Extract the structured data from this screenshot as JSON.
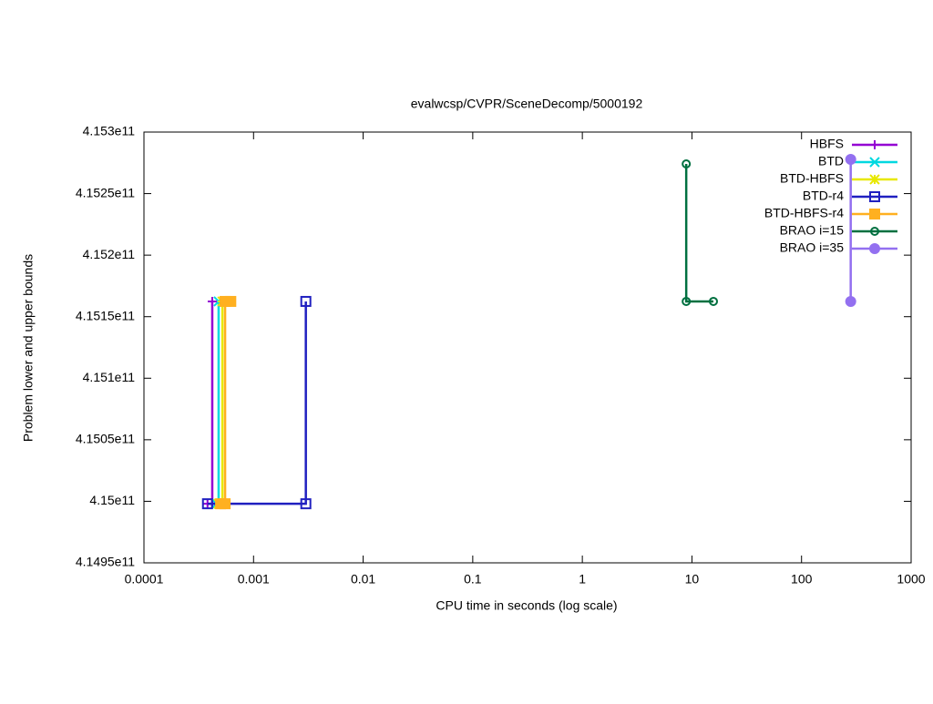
{
  "chart_data": {
    "type": "line",
    "title": "evalwcsp/CVPR/SceneDecomp/5000192",
    "x_label": "CPU time in seconds (log scale)",
    "y_label": "Problem lower and upper bounds",
    "xscale": "log",
    "xlim": [
      0.0001,
      1000
    ],
    "xticks": [
      0.0001,
      0.001,
      0.01,
      0.1,
      1,
      10,
      100,
      1000
    ],
    "ylim": [
      414950000000,
      415300000000
    ],
    "yticks": [
      {
        "value": 414950000000,
        "label": "4.1495e11"
      },
      {
        "value": 415000000000,
        "label": "4.15e11"
      },
      {
        "value": 415050000000,
        "label": "4.1505e11"
      },
      {
        "value": 415100000000,
        "label": "4.151e11"
      },
      {
        "value": 415150000000,
        "label": "4.1515e11"
      },
      {
        "value": 415200000000,
        "label": "4.152e11"
      },
      {
        "value": 415250000000,
        "label": "4.1525e11"
      },
      {
        "value": 415300000000,
        "label": "4.153e11"
      }
    ],
    "legend": "top-right",
    "series": [
      {
        "name": "HBFS",
        "color": "#9400d3",
        "marker": "plus",
        "x": [
          0.00038,
          0.00042,
          0.00042
        ],
        "values": [
          414998000000,
          414998000000,
          415162400000
        ]
      },
      {
        "name": "BTD",
        "color": "#00d8e0",
        "marker": "cross",
        "x": [
          0.00046,
          0.00048,
          0.00048
        ],
        "values": [
          414998000000,
          414998000000,
          415162400000
        ]
      },
      {
        "name": "BTD-HBFS",
        "color": "#e8e800",
        "marker": "star",
        "x": [
          0.00048,
          0.00052,
          0.00052
        ],
        "values": [
          414998000000,
          414998000000,
          415162400000
        ]
      },
      {
        "name": "BTD-r4",
        "color": "#2020c0",
        "marker": "square-open",
        "x": [
          0.00038,
          0.003,
          0.003
        ],
        "values": [
          414998000000,
          414998000000,
          415162400000
        ]
      },
      {
        "name": "BTD-HBFS-r4",
        "color": "#ffb020",
        "marker": "square",
        "x": [
          0.0005,
          0.00055,
          0.00055,
          0.00062
        ],
        "values": [
          414998000000,
          414998000000,
          415162400000,
          415162400000
        ]
      },
      {
        "name": "BRAO i=15",
        "color": "#007040",
        "marker": "circle-open",
        "x": [
          8.87,
          8.87,
          15.7
        ],
        "values": [
          415274100000,
          415162400000,
          415162400000
        ]
      },
      {
        "name": "BRAO i=35",
        "color": "#9370f0",
        "marker": "circle",
        "x": [
          281,
          281
        ],
        "values": [
          415277800000,
          415162400000
        ]
      }
    ]
  }
}
